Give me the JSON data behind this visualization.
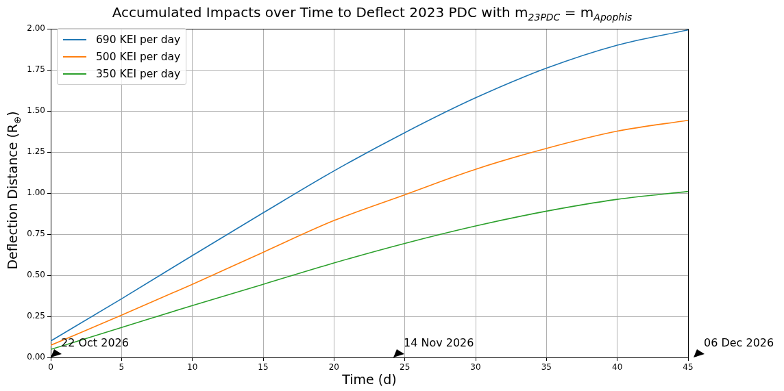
{
  "chart_data": {
    "type": "line",
    "title": "Accumulated Impacts over Time to Deflect 2023 PDC with m$_{23PDC}$ = m$_{Apophis}$",
    "xlabel": "Time (d)",
    "ylabel": "Deflection Distance (R$_{⊕}$)",
    "x": [
      0,
      5,
      10,
      15,
      20,
      25,
      30,
      35,
      40,
      45
    ],
    "series": [
      {
        "name": "690 KEI per day",
        "color": "#1f77b4",
        "values": [
          0.1,
          0.357,
          0.62,
          0.88,
          1.135,
          1.368,
          1.58,
          1.76,
          1.9,
          1.993
        ]
      },
      {
        "name": "500 KEI per day",
        "color": "#ff7f0e",
        "values": [
          0.074,
          0.257,
          0.445,
          0.64,
          0.833,
          0.99,
          1.145,
          1.272,
          1.377,
          1.443
        ]
      },
      {
        "name": "350 KEI per day",
        "color": "#2ca02c",
        "values": [
          0.049,
          0.182,
          0.316,
          0.445,
          0.575,
          0.694,
          0.8,
          0.89,
          0.962,
          1.01
        ]
      }
    ],
    "xlim": [
      0,
      45
    ],
    "xticks": [
      0,
      5,
      10,
      15,
      20,
      25,
      30,
      35,
      40,
      45
    ],
    "ylim": [
      0,
      2
    ],
    "yticks": [
      {
        "value": 0,
        "label": "0.00"
      },
      {
        "value": 0.25,
        "label": "0.25"
      },
      {
        "value": 0.5,
        "label": "0.50"
      },
      {
        "value": 0.75,
        "label": "0.75"
      },
      {
        "value": 1,
        "label": "1.00"
      },
      {
        "value": 1.25,
        "label": "1.25"
      },
      {
        "value": 1.5,
        "label": "1.50"
      },
      {
        "value": 1.75,
        "label": "1.75"
      },
      {
        "value": 2,
        "label": "2.00"
      }
    ],
    "annotations": [
      "22 Oct 2026",
      "14 Nov 2026",
      "06 Dec 2026"
    ],
    "grid": true,
    "legend": "top left",
    "marker": "none",
    "line_style": "solid"
  }
}
